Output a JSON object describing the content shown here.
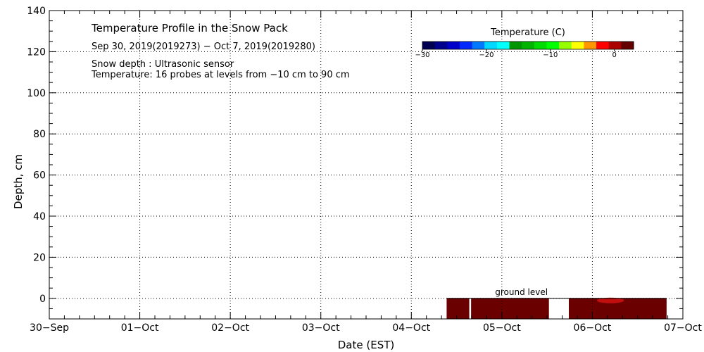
{
  "chart_data": {
    "type": "heatmap",
    "title": "Temperature Profile in the Snow Pack",
    "subtitle": "Sep 30, 2019(2019273) − Oct  7, 2019(2019280)",
    "notes": [
      "Snow depth : Ultrasonic sensor",
      "Temperature: 16 probes at levels from −10 cm to 90 cm"
    ],
    "xlabel": "Date (EST)",
    "ylabel": "Depth, cm",
    "x_ticks": [
      "30−Sep",
      "01−Oct",
      "02−Oct",
      "03−Oct",
      "04−Oct",
      "05−Oct",
      "06−Oct",
      "07−Oct"
    ],
    "xlim": [
      0,
      7
    ],
    "ylim": [
      -10,
      140
    ],
    "y_ticks": [
      0,
      20,
      40,
      60,
      80,
      100,
      120,
      140
    ],
    "grid": true,
    "ground_label": "ground level",
    "ground_level": 0,
    "colorbar": {
      "title": "Temperature (C)",
      "ticks": [
        "−30",
        "−20",
        "−10",
        "0"
      ],
      "tick_values": [
        -30,
        -20,
        -10,
        0
      ],
      "range": [
        -30,
        3
      ],
      "placement": "top-right",
      "colors": [
        "#000050",
        "#00008c",
        "#0000c8",
        "#0028ff",
        "#0078ff",
        "#00d8ff",
        "#00ffff",
        "#009600",
        "#00b400",
        "#00dc00",
        "#00ff00",
        "#96ff00",
        "#ffff00",
        "#ff9600",
        "#ff0000",
        "#aa0000",
        "#640000"
      ]
    },
    "series": [
      {
        "x_start": 4.39,
        "x_end": 4.64,
        "y_bottom": -10,
        "y_top": 0,
        "color": "#6a0000"
      },
      {
        "x_start": 4.66,
        "x_end": 5.52,
        "y_bottom": -10,
        "y_top": 0,
        "color": "#6a0000"
      },
      {
        "x_start": 5.74,
        "x_end": 6.82,
        "y_bottom": -10,
        "y_top": 0,
        "color": "#6a0000"
      }
    ],
    "highlights": [
      {
        "x_start": 6.05,
        "x_end": 6.35,
        "y_bottom": -3,
        "y_top": 0,
        "color": "#d01010"
      }
    ]
  }
}
